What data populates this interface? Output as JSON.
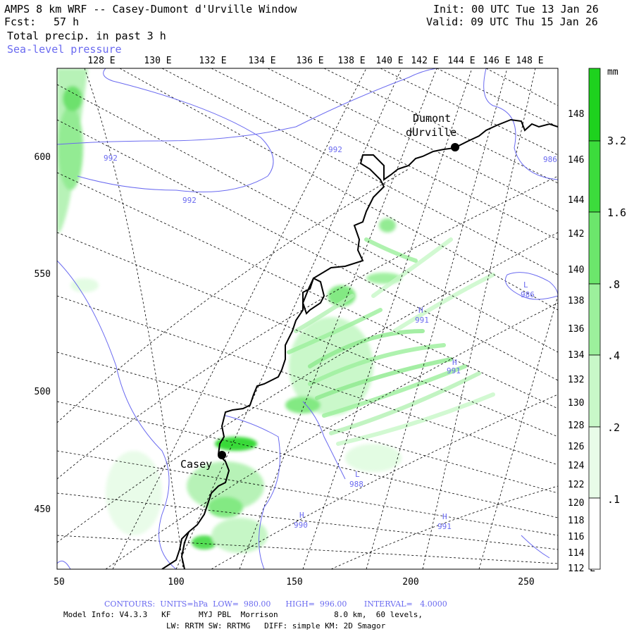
{
  "header": {
    "title": "AMPS 8 km WRF -- Casey-Dumont d'Urville Window",
    "fcst_label": "Fcst:",
    "fcst_hours": "57 h",
    "field": "Total precip. in past 3 h",
    "overlay": "Sea-level pressure",
    "init": "Init: 00 UTC Tue 13 Jan 26",
    "valid": "Valid: 09 UTC Thu 15 Jan 26"
  },
  "top_lon_labels": [
    "128 E",
    "130 E",
    "132 E",
    "134 E",
    "136 E",
    "138 E",
    "140 E",
    "142 E",
    "144 E",
    "146 E",
    "148 E"
  ],
  "right_lon_labels": [
    "148 E",
    "146 E",
    "144 E",
    "142 E",
    "140 E",
    "138 E",
    "136 E",
    "134 E",
    "132 E",
    "130 E",
    "128 E",
    "126 E",
    "124 E",
    "122 E",
    "120 E",
    "118 E",
    "116 E",
    "114 E",
    "112 E"
  ],
  "x_ticks": [
    "50",
    "100",
    "150",
    "200",
    "250"
  ],
  "y_ticks": [
    "600",
    "550",
    "500",
    "450"
  ],
  "stations": [
    {
      "name_lines": [
        "Casey"
      ]
    },
    {
      "name_lines": [
        "Dumont",
        "dUrville"
      ]
    }
  ],
  "pressure_labels": [
    "992",
    "992",
    "992",
    "986",
    "986",
    "991",
    "991",
    "988",
    "990",
    "991"
  ],
  "pressure_centers": [
    "L",
    "H",
    "H",
    "L",
    "H",
    "H"
  ],
  "colorbar": {
    "unit": "mm",
    "labels": [
      "3.2",
      "1.6",
      ".8",
      ".4",
      ".2",
      ".1"
    ],
    "colors": [
      "#1ed21e",
      "#3cdc3c",
      "#6ce66c",
      "#9cf09c",
      "#c8f8c8",
      "#e8fce8",
      "#ffffff"
    ]
  },
  "footer": {
    "contours": "CONTOURS:  UNITS=hPa  LOW=  980.00      HIGH=  996.00       INTERVAL=   4.0000",
    "model_info": "Model Info: V4.3.3   KF      MYJ PBL  Morrison            8.0 km,  60 levels,",
    "physics": "LW: RRTM SW: RRTMG   DIFF: simple KM: 2D Smagor"
  },
  "colors": {
    "isobar": "#6a6af0",
    "coast": "#000000",
    "grid": "#000000"
  }
}
